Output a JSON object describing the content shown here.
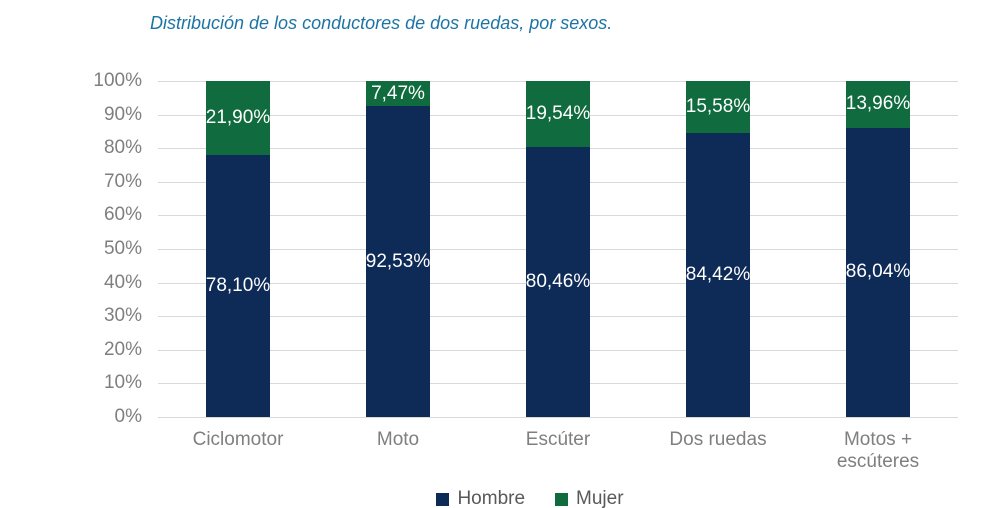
{
  "page": {
    "background": "#FFFFFF"
  },
  "header": {
    "title": "Distribución de los conductores de dos ruedas, por sexos.",
    "title_color": "#1C74A5"
  },
  "chart_data": {
    "type": "bar",
    "stacked": true,
    "orientation": "vertical",
    "title": "Distribución de los conductores de dos ruedas, por sexos.",
    "categories": [
      "Ciclomotor",
      "Moto",
      "Escúter",
      "Dos ruedas",
      "Motos + escúteres"
    ],
    "series": [
      {
        "name": "Hombre",
        "color": "#0E2A56",
        "values": [
          78.1,
          92.53,
          80.46,
          84.42,
          86.04
        ],
        "value_labels": [
          "78,10%",
          "92,53%",
          "80,46%",
          "84,42%",
          "86,04%"
        ]
      },
      {
        "name": "Mujer",
        "color": "#106B3E",
        "values": [
          21.9,
          7.47,
          19.54,
          15.58,
          13.96
        ],
        "value_labels": [
          "21,90%",
          "7,47%",
          "19,54%",
          "15,58%",
          "13,96%"
        ]
      }
    ],
    "ylim": [
      0,
      100
    ],
    "ytick_labels": [
      "0%",
      "10%",
      "20%",
      "30%",
      "40%",
      "50%",
      "60%",
      "70%",
      "80%",
      "90%",
      "100%"
    ],
    "grid": true,
    "legend_position": "bottom",
    "axis_text_color": "#7F7F7F",
    "gridline_color": "#D9D9D9",
    "bar_label_color": "#FFFFFF"
  },
  "legend": {
    "items": [
      {
        "label": "Hombre",
        "color": "#0E2A56"
      },
      {
        "label": "Mujer",
        "color": "#106B3E"
      }
    ],
    "text_color": "#595959"
  }
}
